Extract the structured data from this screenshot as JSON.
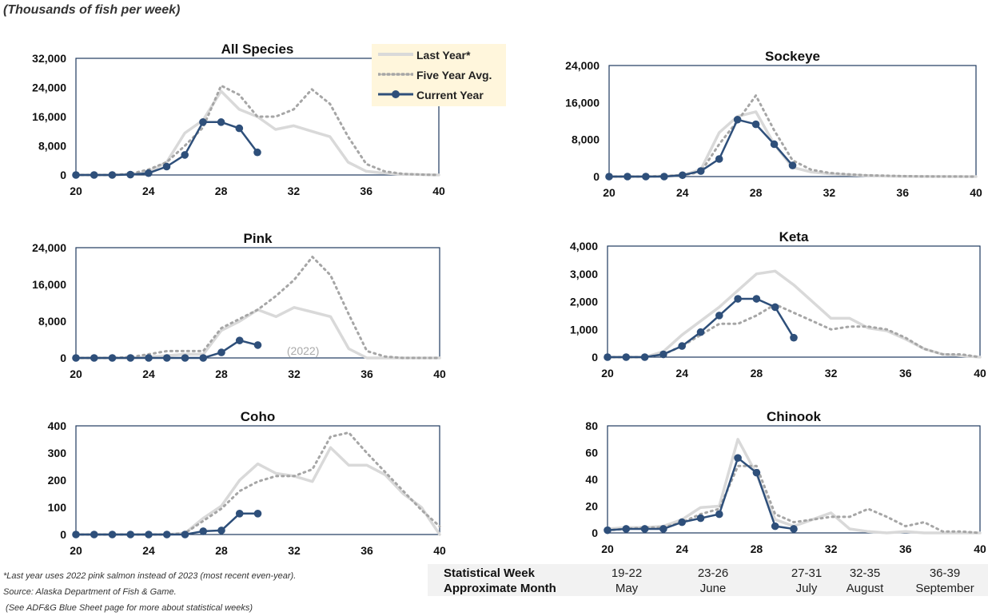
{
  "subtitle": "(Thousands of fish per week)",
  "legend": {
    "last_year": "Last Year*",
    "five_year": "Five Year Avg.",
    "current_year": "Current Year"
  },
  "colors": {
    "last_year": "#d9d9d9",
    "five_year": "#a6a6a6",
    "current_year": "#2e4f7a",
    "frame": "#1f3a5f",
    "legend_bg": "#fff6dc",
    "table_bg": "#f2f2f2"
  },
  "footnotes": {
    "note1": "*Last year uses 2022 pink salmon instead of 2023 (most recent even-year).",
    "note2": "Source: Alaska Department of Fish & Game.",
    "note3": " (See ADF&G Blue Sheet page for more about statistical weeks)"
  },
  "week_table": {
    "row1_label": "Statistical Week",
    "row2_label": "Approximate Month",
    "columns": [
      {
        "weeks": "19-22",
        "month": "May"
      },
      {
        "weeks": "23-26",
        "month": "June"
      },
      {
        "weeks": "27-31",
        "month": "July"
      },
      {
        "weeks": "32-35",
        "month": "August"
      },
      {
        "weeks": "36-39",
        "month": "September"
      }
    ]
  },
  "chart_data": [
    {
      "type": "line",
      "title": "All Species",
      "xlim": [
        20,
        40
      ],
      "xticks": [
        20,
        24,
        28,
        32,
        36,
        40
      ],
      "ylim": [
        0,
        32000
      ],
      "yticks": [
        0,
        8000,
        16000,
        24000,
        32000
      ],
      "ytick_labels": [
        "0",
        "8,000",
        "16,000",
        "24,000",
        "32,000"
      ],
      "series": [
        {
          "name": "Last Year*",
          "x": [
            20,
            21,
            22,
            23,
            24,
            25,
            26,
            27,
            28,
            29,
            30,
            31,
            32,
            33,
            34,
            35,
            36,
            37,
            38,
            39,
            40
          ],
          "values": [
            0,
            0,
            0,
            200,
            800,
            3500,
            11500,
            15000,
            23000,
            18000,
            16000,
            12500,
            13500,
            12000,
            10500,
            3500,
            1000,
            500,
            200,
            100,
            0
          ]
        },
        {
          "name": "Five Year Avg.",
          "x": [
            20,
            21,
            22,
            23,
            24,
            25,
            26,
            27,
            28,
            29,
            30,
            31,
            32,
            33,
            34,
            35,
            36,
            37,
            38,
            39,
            40
          ],
          "values": [
            0,
            0,
            0,
            300,
            1500,
            3500,
            8000,
            13000,
            24500,
            22000,
            16000,
            16000,
            18000,
            23500,
            19500,
            10500,
            3000,
            1000,
            300,
            100,
            0
          ]
        },
        {
          "name": "Current Year",
          "x": [
            20,
            21,
            22,
            23,
            24,
            25,
            26,
            27,
            28,
            29,
            30
          ],
          "values": [
            0,
            0,
            0,
            100,
            500,
            2300,
            5500,
            14500,
            14500,
            12800,
            6200
          ]
        }
      ]
    },
    {
      "type": "line",
      "title": "Sockeye",
      "xlim": [
        20,
        40
      ],
      "xticks": [
        20,
        24,
        28,
        32,
        36,
        40
      ],
      "ylim": [
        0,
        24000
      ],
      "yticks": [
        0,
        8000,
        16000,
        24000
      ],
      "ytick_labels": [
        "0",
        "8,000",
        "16,000",
        "24,000"
      ],
      "series": [
        {
          "name": "Last Year*",
          "x": [
            20,
            21,
            22,
            23,
            24,
            25,
            26,
            27,
            28,
            29,
            30,
            31,
            32,
            33,
            34,
            35,
            36,
            37,
            38,
            39,
            40
          ],
          "values": [
            0,
            0,
            0,
            100,
            300,
            1500,
            9500,
            13000,
            14000,
            7000,
            2000,
            1000,
            600,
            400,
            200,
            100,
            50,
            20,
            10,
            0,
            0
          ]
        },
        {
          "name": "Five Year Avg.",
          "x": [
            20,
            21,
            22,
            23,
            24,
            25,
            26,
            27,
            28,
            29,
            30,
            31,
            32,
            33,
            34,
            35,
            36,
            37,
            38,
            39,
            40
          ],
          "values": [
            0,
            0,
            0,
            100,
            300,
            1000,
            7000,
            12000,
            17500,
            10000,
            3500,
            1500,
            800,
            500,
            300,
            200,
            100,
            50,
            20,
            10,
            0
          ]
        },
        {
          "name": "Current Year",
          "x": [
            20,
            21,
            22,
            23,
            24,
            25,
            26,
            27,
            28,
            29,
            30
          ],
          "values": [
            0,
            0,
            0,
            0,
            300,
            1200,
            3800,
            12300,
            11300,
            7000,
            2400
          ]
        }
      ]
    },
    {
      "type": "line",
      "title": "Pink",
      "xlim": [
        20,
        40
      ],
      "xticks": [
        20,
        24,
        28,
        32,
        36,
        40
      ],
      "ylim": [
        0,
        24000
      ],
      "yticks": [
        0,
        8000,
        16000,
        24000
      ],
      "ytick_labels": [
        "0",
        "8,000",
        "16,000",
        "24,000"
      ],
      "annotation": "(2022)",
      "series": [
        {
          "name": "Last Year*",
          "x": [
            20,
            21,
            22,
            23,
            24,
            25,
            26,
            27,
            28,
            29,
            30,
            31,
            32,
            33,
            34,
            35,
            36,
            37,
            38,
            39,
            40
          ],
          "values": [
            0,
            0,
            0,
            0,
            200,
            500,
            800,
            800,
            6000,
            8000,
            10500,
            9000,
            11000,
            10000,
            9000,
            2000,
            0,
            0,
            0,
            0,
            0
          ]
        },
        {
          "name": "Five Year Avg.",
          "x": [
            20,
            21,
            22,
            23,
            24,
            25,
            26,
            27,
            28,
            29,
            30,
            31,
            32,
            33,
            34,
            35,
            36,
            37,
            38,
            39,
            40
          ],
          "values": [
            0,
            0,
            0,
            200,
            800,
            1500,
            1500,
            1500,
            6500,
            8500,
            10500,
            13500,
            17000,
            22000,
            18000,
            9500,
            1500,
            300,
            0,
            0,
            0
          ]
        },
        {
          "name": "Current Year",
          "x": [
            20,
            21,
            22,
            23,
            24,
            25,
            26,
            27,
            28,
            29,
            30
          ],
          "values": [
            0,
            0,
            0,
            0,
            0,
            0,
            0,
            0,
            1200,
            3800,
            2800
          ]
        }
      ]
    },
    {
      "type": "line",
      "title": "Keta",
      "xlim": [
        20,
        40
      ],
      "xticks": [
        20,
        24,
        28,
        32,
        36,
        40
      ],
      "ylim": [
        0,
        4000
      ],
      "yticks": [
        0,
        1000,
        2000,
        3000,
        4000
      ],
      "ytick_labels": [
        "0",
        "1,000",
        "2,000",
        "3,000",
        "4,000"
      ],
      "series": [
        {
          "name": "Last Year*",
          "x": [
            20,
            21,
            22,
            23,
            24,
            25,
            26,
            27,
            28,
            29,
            30,
            31,
            32,
            33,
            34,
            35,
            36,
            37,
            38,
            39,
            40
          ],
          "values": [
            0,
            0,
            0,
            200,
            800,
            1300,
            1800,
            2400,
            3000,
            3100,
            2600,
            2000,
            1400,
            1400,
            1050,
            950,
            650,
            300,
            100,
            50,
            0
          ]
        },
        {
          "name": "Five Year Avg.",
          "x": [
            20,
            21,
            22,
            23,
            24,
            25,
            26,
            27,
            28,
            29,
            30,
            31,
            32,
            33,
            34,
            35,
            36,
            37,
            38,
            39,
            40
          ],
          "values": [
            0,
            0,
            0,
            100,
            400,
            800,
            1200,
            1200,
            1500,
            1900,
            1600,
            1300,
            1000,
            1100,
            1100,
            1000,
            700,
            300,
            100,
            100,
            0
          ]
        },
        {
          "name": "Current Year",
          "x": [
            20,
            21,
            22,
            23,
            24,
            25,
            26,
            27,
            28,
            29,
            30
          ],
          "values": [
            0,
            0,
            0,
            100,
            400,
            900,
            1500,
            2100,
            2100,
            1800,
            700
          ]
        }
      ]
    },
    {
      "type": "line",
      "title": "Coho",
      "xlim": [
        20,
        40
      ],
      "xticks": [
        20,
        24,
        28,
        32,
        36,
        40
      ],
      "ylim": [
        0,
        400
      ],
      "yticks": [
        0,
        100,
        200,
        300,
        400
      ],
      "ytick_labels": [
        "0",
        "100",
        "200",
        "300",
        "400"
      ],
      "series": [
        {
          "name": "Last Year*",
          "x": [
            20,
            21,
            22,
            23,
            24,
            25,
            26,
            27,
            28,
            29,
            30,
            31,
            32,
            33,
            34,
            35,
            36,
            37,
            38,
            39,
            40
          ],
          "values": [
            0,
            0,
            0,
            0,
            0,
            0,
            5,
            60,
            105,
            200,
            260,
            225,
            215,
            195,
            320,
            255,
            255,
            220,
            150,
            100,
            0
          ]
        },
        {
          "name": "Five Year Avg.",
          "x": [
            20,
            21,
            22,
            23,
            24,
            25,
            26,
            27,
            28,
            29,
            30,
            31,
            32,
            33,
            34,
            35,
            36,
            37,
            38,
            39,
            40
          ],
          "values": [
            0,
            0,
            0,
            0,
            0,
            0,
            5,
            50,
            95,
            160,
            195,
            215,
            215,
            240,
            360,
            375,
            300,
            230,
            160,
            90,
            30
          ]
        },
        {
          "name": "Current Year",
          "x": [
            20,
            21,
            22,
            23,
            24,
            25,
            26,
            27,
            28,
            29,
            30
          ],
          "values": [
            0,
            0,
            0,
            0,
            0,
            0,
            0,
            12,
            15,
            77,
            77
          ]
        }
      ]
    },
    {
      "type": "line",
      "title": "Chinook",
      "xlim": [
        20,
        40
      ],
      "xticks": [
        20,
        24,
        28,
        32,
        36,
        40
      ],
      "ylim": [
        0,
        80
      ],
      "yticks": [
        0,
        20,
        40,
        60,
        80
      ],
      "ytick_labels": [
        "0",
        "20",
        "40",
        "60",
        "80"
      ],
      "series": [
        {
          "name": "Last Year*",
          "x": [
            20,
            21,
            22,
            23,
            24,
            25,
            26,
            27,
            28,
            29,
            30,
            31,
            32,
            33,
            34,
            35,
            36,
            37,
            38,
            39,
            40
          ],
          "values": [
            3,
            4,
            4,
            5,
            10,
            19,
            20,
            70,
            44,
            10,
            5,
            10,
            15,
            3,
            1,
            0,
            1,
            0,
            0,
            0,
            0
          ]
        },
        {
          "name": "Five Year Avg.",
          "x": [
            20,
            21,
            22,
            23,
            24,
            25,
            26,
            27,
            28,
            29,
            30,
            31,
            32,
            33,
            34,
            35,
            36,
            37,
            38,
            39,
            40
          ],
          "values": [
            2,
            3,
            4,
            4,
            8,
            14,
            18,
            50,
            50,
            14,
            8,
            10,
            12,
            12,
            18,
            12,
            5,
            8,
            1,
            1,
            0
          ]
        },
        {
          "name": "Current Year",
          "x": [
            20,
            21,
            22,
            23,
            24,
            25,
            26,
            27,
            28,
            29,
            30
          ],
          "values": [
            2,
            3,
            3,
            3,
            8,
            11,
            14,
            56,
            45,
            5,
            3
          ]
        }
      ]
    }
  ]
}
